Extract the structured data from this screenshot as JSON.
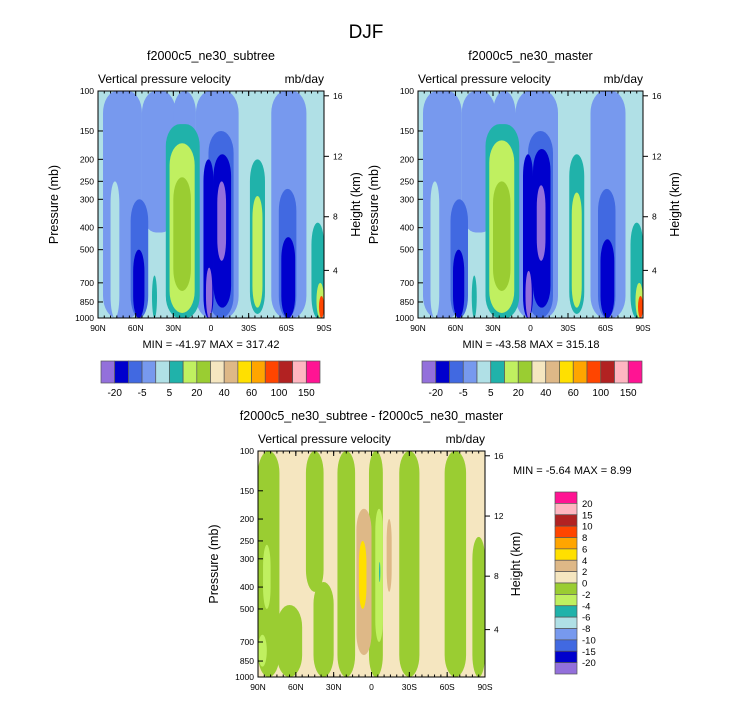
{
  "chart_data": {
    "type": "heatmap",
    "title": "DJF",
    "colors": [
      "#9370DB",
      "#0000CD",
      "#4169E1",
      "#7799EE",
      "#B0E0E6",
      "#20B2AA",
      "#C0F060",
      "#9ACD32",
      "#F5E6C0",
      "#DEB887",
      "#FFE000",
      "#FFA500",
      "#FF4500",
      "#B22222",
      "#FFB6C1",
      "#FF1493"
    ],
    "x_ticks": [
      {
        "label": "90N",
        "lat": 90
      },
      {
        "label": "60N",
        "lat": 60
      },
      {
        "label": "30N",
        "lat": 30
      },
      {
        "label": "0",
        "lat": 0
      },
      {
        "label": "30S",
        "lat": -30
      },
      {
        "label": "60S",
        "lat": -60
      },
      {
        "label": "90S",
        "lat": -90
      }
    ],
    "p_ticks": [
      100,
      150,
      200,
      250,
      300,
      400,
      500,
      700,
      850,
      1000
    ],
    "height_ticks": [
      {
        "label": "16",
        "p": 105
      },
      {
        "label": "12",
        "p": 194
      },
      {
        "label": "8",
        "p": 358
      },
      {
        "label": "4",
        "p": 617
      }
    ],
    "ylabel": "Pressure (mb)",
    "ylabel_right": "Height (km)",
    "panels": [
      {
        "title": "f2000c5_ne30_subtree",
        "variable": "Vertical pressure velocity",
        "units": "mb/day",
        "stats": "MIN = -41.97  MAX = 317.42",
        "background_level": 4,
        "blobs": [
          [
            86,
            55,
            100,
            1000,
            3
          ],
          [
            55,
            28,
            100,
            420,
            3
          ],
          [
            12,
            -22,
            100,
            1000,
            3
          ],
          [
            -48,
            -76,
            100,
            1000,
            3
          ],
          [
            30,
            12,
            100,
            220,
            3
          ],
          [
            80,
            73,
            250,
            1000,
            4
          ],
          [
            64,
            50,
            300,
            1000,
            2
          ],
          [
            2,
            -18,
            150,
            1000,
            2
          ],
          [
            -54,
            -68,
            270,
            1000,
            2
          ],
          [
            62,
            53,
            500,
            1000,
            1
          ],
          [
            6,
            -2,
            200,
            1000,
            1
          ],
          [
            -2,
            -16,
            190,
            900,
            1
          ],
          [
            -56,
            -67,
            440,
            1000,
            1
          ],
          [
            -5,
            -12,
            250,
            560,
            0
          ],
          [
            4,
            -1,
            600,
            1000,
            0
          ],
          [
            36,
            9,
            140,
            1000,
            5
          ],
          [
            -31,
            -43,
            200,
            960,
            5
          ],
          [
            -80,
            -90,
            380,
            1000,
            5
          ],
          [
            47,
            43,
            650,
            1000,
            5
          ],
          [
            33,
            13,
            170,
            950,
            6
          ],
          [
            -33,
            -41,
            290,
            900,
            6
          ],
          [
            -84,
            -90,
            700,
            1000,
            6
          ],
          [
            30,
            16,
            240,
            760,
            7
          ],
          [
            -86,
            -90,
            800,
            1000,
            12
          ]
        ]
      },
      {
        "title": "f2000c5_ne30_master",
        "variable": "Vertical pressure velocity",
        "units": "mb/day",
        "stats": "MIN = -43.58  MAX = 315.18",
        "background_level": 4,
        "blobs": [
          [
            86,
            55,
            100,
            1000,
            3
          ],
          [
            55,
            28,
            100,
            420,
            3
          ],
          [
            12,
            -22,
            100,
            1000,
            3
          ],
          [
            -48,
            -76,
            100,
            1000,
            3
          ],
          [
            30,
            12,
            100,
            220,
            3
          ],
          [
            80,
            73,
            250,
            1000,
            4
          ],
          [
            64,
            50,
            300,
            1000,
            2
          ],
          [
            2,
            -18,
            150,
            1000,
            2
          ],
          [
            -54,
            -68,
            270,
            1000,
            2
          ],
          [
            62,
            53,
            500,
            1000,
            1
          ],
          [
            6,
            -2,
            190,
            1000,
            1
          ],
          [
            -2,
            -16,
            180,
            900,
            1
          ],
          [
            -56,
            -67,
            450,
            1000,
            1
          ],
          [
            -5,
            -12,
            260,
            560,
            0
          ],
          [
            4,
            -1,
            620,
            1000,
            0
          ],
          [
            36,
            9,
            140,
            1000,
            5
          ],
          [
            -31,
            -43,
            190,
            960,
            5
          ],
          [
            -80,
            -90,
            380,
            1000,
            5
          ],
          [
            47,
            43,
            650,
            1000,
            5
          ],
          [
            33,
            13,
            165,
            950,
            6
          ],
          [
            -33,
            -41,
            280,
            900,
            6
          ],
          [
            -84,
            -90,
            700,
            1000,
            6
          ],
          [
            30,
            16,
            250,
            760,
            7
          ],
          [
            -86,
            -90,
            800,
            1000,
            12
          ]
        ]
      },
      {
        "title": "f2000c5_ne30_subtree - f2000c5_ne30_master",
        "variable": "Vertical pressure velocity",
        "units": "mb/day",
        "stats": "MIN =  -5.64  MAX =  8.99",
        "background_level": 8,
        "blobs": [
          [
            90,
            73,
            100,
            1000,
            7
          ],
          [
            75,
            55,
            480,
            1000,
            7
          ],
          [
            52,
            38,
            100,
            420,
            7
          ],
          [
            46,
            30,
            380,
            1000,
            7
          ],
          [
            27,
            13,
            100,
            1000,
            7
          ],
          [
            2,
            -9,
            100,
            1000,
            7
          ],
          [
            -22,
            -38,
            100,
            1000,
            7
          ],
          [
            -58,
            -75,
            100,
            1000,
            7
          ],
          [
            -80,
            -90,
            240,
            1000,
            7
          ],
          [
            86,
            80,
            260,
            500,
            6
          ],
          [
            90,
            83,
            650,
            900,
            6
          ],
          [
            12,
            0,
            180,
            800,
            9
          ],
          [
            10,
            4,
            250,
            500,
            10
          ],
          [
            -3,
            -9,
            180,
            700,
            6
          ],
          [
            -6,
            -7,
            310,
            380,
            5
          ],
          [
            -12,
            -16,
            200,
            420,
            9
          ]
        ]
      }
    ],
    "colorbar_top": {
      "labels": [
        "-20",
        "-5",
        "5",
        "20",
        "40",
        "60",
        "100",
        "150"
      ]
    },
    "colorbar_diff": {
      "labels": [
        "20",
        "15",
        "10",
        "8",
        "6",
        "4",
        "2",
        "0",
        "-2",
        "-4",
        "-6",
        "-8",
        "-10",
        "-15",
        "-20"
      ]
    }
  }
}
